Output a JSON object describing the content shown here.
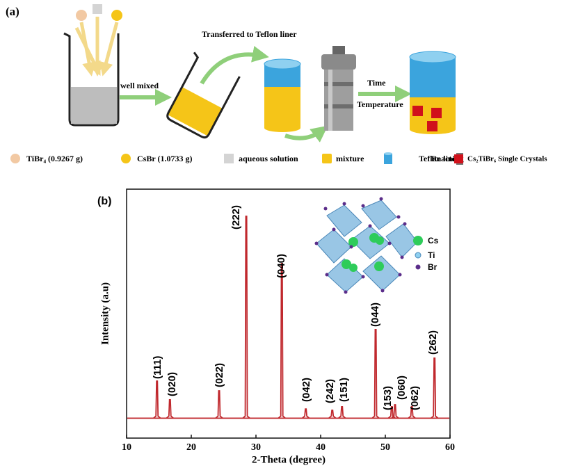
{
  "panel_a": {
    "label": "(a)",
    "step_mix": "well mixed",
    "step_transfer": "Transferred to Teflon liner",
    "step_time": "Time",
    "step_temperature": "Temperature",
    "legend": [
      "TiBr₄ (0.9267 g)",
      "CsBr (1.0733 g)",
      "aqueous solution",
      "mixture",
      "Teflon lining",
      "Reactor",
      "Cs₂TiBr₆ Single Crystals"
    ]
  },
  "chart_data": {
    "type": "line",
    "panel_label": "(b)",
    "x_label": "2-Theta (degree)",
    "y_label": "Intensity (a.u)",
    "color": "#c0282d",
    "baseline": 8,
    "x": [
      14.7,
      16.7,
      24.3,
      28.5,
      34.0,
      37.7,
      41.8,
      43.3,
      48.5,
      51.0,
      51.5,
      54.1,
      57.6
    ],
    "values": [
      22.9,
      15.4,
      19,
      89.1,
      70.1,
      11.7,
      11.2,
      12.6,
      43.6,
      12.6,
      13.4,
      12.6,
      32.1
    ],
    "peak_labels": [
      "(111)",
      "(020)",
      "(022)",
      "(222)",
      "(040)",
      "(042)",
      "(242)",
      "(151)",
      "(044)",
      "(153)",
      "(060)",
      "(062)",
      "(262)"
    ],
    "xlim": [
      10,
      60
    ],
    "xticks": [
      10,
      20,
      30,
      40,
      50,
      60
    ],
    "ylim": [
      0,
      100
    ],
    "inset_legend": [
      "Cs",
      "Ti",
      "Br"
    ]
  }
}
